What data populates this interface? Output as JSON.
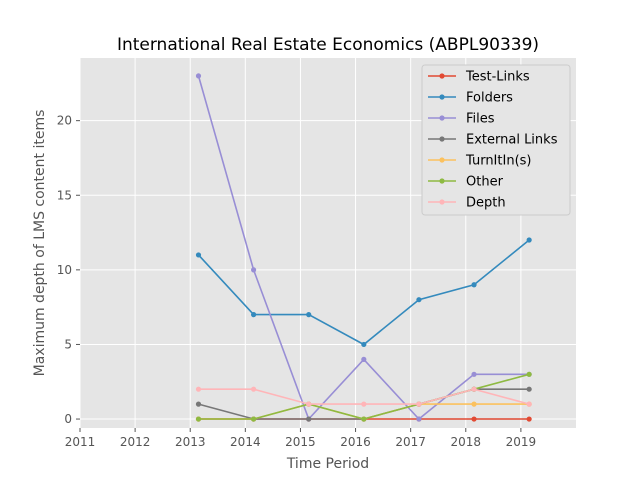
{
  "chart_data": {
    "type": "line",
    "title": "International Real Estate Economics (ABPL90339)",
    "xlabel": "Time Period",
    "ylabel": "Maximum depth of LMS content items",
    "xlim": [
      2011,
      2020
    ],
    "ylim": [
      -0.6,
      24.2
    ],
    "xticks": [
      2011,
      2012,
      2013,
      2014,
      2015,
      2016,
      2017,
      2018,
      2019
    ],
    "yticks": [
      0,
      5,
      10,
      15,
      20
    ],
    "grid": true,
    "legend_position": "top-right",
    "x": [
      2013.15,
      2014.15,
      2015.15,
      2016.15,
      2017.15,
      2018.15,
      2019.15
    ],
    "series": [
      {
        "name": "Test-Links",
        "color": "#e24a33",
        "values": [
          0,
          0,
          0,
          0,
          0,
          0,
          0
        ]
      },
      {
        "name": "Folders",
        "color": "#348abd",
        "values": [
          11,
          7,
          7,
          5,
          8,
          9,
          12
        ]
      },
      {
        "name": "Files",
        "color": "#988ed5",
        "values": [
          23,
          10,
          0,
          4,
          0,
          3,
          3
        ]
      },
      {
        "name": "External Links",
        "color": "#777777",
        "values": [
          1,
          0,
          0,
          0,
          1,
          2,
          2
        ]
      },
      {
        "name": "TurnItIn(s)",
        "color": "#fbc15e",
        "values": [
          0,
          0,
          1,
          0,
          1,
          1,
          1
        ]
      },
      {
        "name": "Other",
        "color": "#8eba42",
        "values": [
          0,
          0,
          1,
          0,
          1,
          2,
          3
        ]
      },
      {
        "name": "Depth",
        "color": "#ffb5b8",
        "values": [
          2,
          2,
          1,
          1,
          1,
          2,
          1
        ]
      }
    ]
  }
}
